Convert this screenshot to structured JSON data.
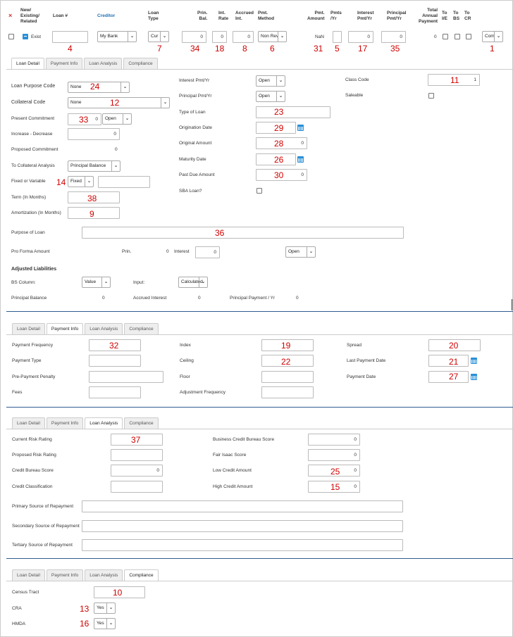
{
  "header": {
    "x_icon": "×",
    "new_existing": "New/\nExisting/\nRelated",
    "loan_no": "Loan #",
    "creditor": "Creditor",
    "loan_type": "Loan\nType",
    "prin_bal": "Prin.\nBal.",
    "int_rate": "Int.\nRate",
    "accrued": "Accrued\nInt.",
    "pmt_method": "Pmt.\nMethod",
    "pmt_amount": "Pmt.\nAmount",
    "pmts_yr": "Pmts\n/Yr",
    "interest_pmt": "Interest\nPmt/Yr",
    "principal_pmt": "Principal\nPmt/Yr",
    "total_annual": "Total\nAnnual\nPayment",
    "to_ie": "To\nI/E",
    "to_bs": "To\nBS",
    "to_cr": "To\nCR"
  },
  "row": {
    "existing": "Exist",
    "creditor": "My Bank",
    "loan_type": "Cur",
    "prin_bal": "0",
    "int_rate": "0",
    "accrued": "0",
    "pmt_method": "Non Rev",
    "pmt_amount": "NaN",
    "interest_pmt": "0",
    "principal_pmt": "0",
    "total_annual": "0",
    "com": "Com"
  },
  "tabs": [
    "Loan Detail",
    "Payment Info",
    "Loan Analysis",
    "Compliance"
  ],
  "loan_detail": {
    "loan_purpose_code": "Loan Purpose Code",
    "loan_purpose_val": "None",
    "collateral_code": "Collateral Code",
    "collateral_val": "None",
    "present_commitment": "Present Commitment",
    "present_val": "0",
    "present_sel": "Open",
    "increase_decrease": "Increase - Decrease",
    "increase_val": "0",
    "proposed_commitment": "Proposed Commitment",
    "proposed_val": "0",
    "to_collateral": "To Collateral Analysis",
    "to_collateral_val": "Principal Balance",
    "fixed_variable": "Fixed or Variable",
    "fixed_val": "Fixed",
    "term": "Term (In Months)",
    "amortization": "Amortization (In Months)",
    "interest_pmt_yr": "Interest Pmt/Yr",
    "interest_pmt_val": "Open",
    "principal_pmt_yr": "Principal Pmt/Yr",
    "principal_pmt_val": "Open",
    "type_of_loan": "Type of Loan",
    "origination_date": "Origination Date",
    "original_amount": "Original Amount",
    "original_val": "0",
    "maturity_date": "Maturity Date",
    "past_due": "Past Due Amount",
    "past_due_val": "0",
    "sba_loan": "SBA Loan?",
    "class_code": "Class Code",
    "class_val": "1",
    "saleable": "Saleable",
    "purpose_of_loan": "Purpose of Loan",
    "pro_forma": "Pro Forma Amount",
    "prin": "Prin.",
    "prin_val": "0",
    "interest": "Interest",
    "interest_val": "0",
    "pro_forma_sel": "Open",
    "adjusted_liabilities": "Adjusted Liabilities",
    "bs_column": "BS Column:",
    "bs_column_val": "Value",
    "input": "Input:",
    "input_val": "Calculated",
    "principal_balance": "Principal Balance",
    "principal_balance_val": "0",
    "accrued_interest": "Accrued Interest",
    "accrued_interest_val": "0",
    "principal_payment_yr": "Principal Payment / Yr",
    "principal_payment_val": "0"
  },
  "payment_info": {
    "payment_frequency": "Payment Frequency",
    "payment_type": "Payment Type",
    "pre_payment": "Pre-Payment Penalty",
    "fees": "Fees",
    "index": "Index",
    "ceiling": "Ceiling",
    "floor": "Floor",
    "adjustment_frequency": "Adjustment Frequency",
    "spread": "Spread",
    "last_payment_date": "Last Payment Date",
    "payment_date": "Payment Date"
  },
  "loan_analysis": {
    "current_risk": "Current Risk Rating",
    "proposed_risk": "Proposed Risk Rating",
    "credit_bureau": "Credit Bureau Score",
    "credit_bureau_val": "0",
    "credit_classification": "Credit Classification",
    "business_credit": "Business Credit Bureau Score",
    "business_credit_val": "0",
    "fair_isaac": "Fair Isaac Score",
    "fair_isaac_val": "0",
    "low_credit": "Low Credit Amount",
    "low_credit_val": "0",
    "high_credit": "High Credit Amount",
    "high_credit_val": "0",
    "primary_source": "Primary Source of Repayment",
    "secondary_source": "Secondary Source of Repayment",
    "tertiary_source": "Tertiary Source of Repayment"
  },
  "compliance": {
    "census_tract": "Census Tract",
    "cra": "CRA",
    "cra_val": "Yes",
    "hmda": "HMDA",
    "hmda_val": "Yes"
  },
  "annotations": {
    "n1": "1",
    "n4": "4",
    "n5": "5",
    "n6": "6",
    "n7": "7",
    "n8": "8",
    "n9": "9",
    "n10": "10",
    "n11": "11",
    "n12": "12",
    "n13": "13",
    "n14": "14",
    "n15": "15",
    "n16": "16",
    "n17": "17",
    "n18": "18",
    "n19": "19",
    "n20": "20",
    "n21": "21",
    "n22": "22",
    "n23": "23",
    "n24": "24",
    "n25": "25",
    "n26": "26",
    "n27": "27",
    "n28": "28",
    "n29": "29",
    "n30": "30",
    "n31": "31",
    "n32": "32",
    "n33": "33",
    "n34": "34",
    "n35": "35",
    "n36": "36",
    "n37": "37",
    "n38": "38"
  }
}
